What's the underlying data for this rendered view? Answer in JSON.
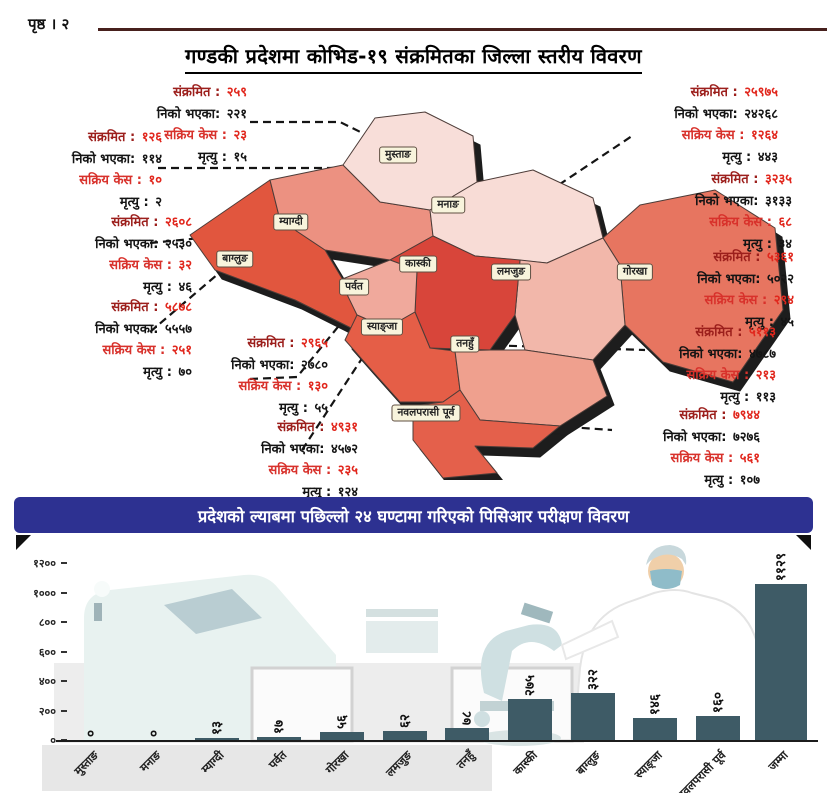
{
  "page": {
    "page_label": "पृष्ठ । २",
    "map_title": "गण्डकी प्रदेशमा कोभिड-१९ संक्रमितका जिल्ला स्तरीय विवरण"
  },
  "stat_labels": {
    "infected": "संक्रमित :",
    "recovered": "निको भएका:",
    "active": "सक्रिय केस :",
    "deaths": "मृत्यु :"
  },
  "colors": {
    "banner": "#2d3191",
    "bar": "#3e5b66",
    "map_shadow": "#1d1d1d",
    "infected_label": "#9c1f1c",
    "red_value": "#e1261c"
  },
  "districts": [
    {
      "name": "मुस्ताङ",
      "infected": "२५९",
      "recovered": "२२१",
      "active": "२३",
      "deaths": "१५",
      "color": "#f8ded9"
    },
    {
      "name": "मनाङ",
      "infected": "१२६",
      "recovered": "११४",
      "active": "१०",
      "deaths": "२",
      "color": "#f8dcd6"
    },
    {
      "name": "म्याग्दी",
      "infected": "२६०८",
      "recovered": "२५३०",
      "active": "३२",
      "deaths": "४६",
      "color": "#ec9181"
    },
    {
      "name": "बाग्लुङ",
      "infected": "५८७८",
      "recovered": "५५५७",
      "active": "२५१",
      "deaths": "७०",
      "color": "#e1563e"
    },
    {
      "name": "पर्वत",
      "infected": "२९६५",
      "recovered": "२७८०",
      "active": "१३०",
      "deaths": "५५",
      "color": "#f0a99c"
    },
    {
      "name": "स्याङ्जा",
      "infected": "४९३१",
      "recovered": "४५७२",
      "active": "२३५",
      "deaths": "१२४",
      "color": "#e55e47"
    },
    {
      "name": "कास्की",
      "infected": "२५९७५",
      "recovered": "२४२६८",
      "active": "१२६४",
      "deaths": "४४३",
      "color": "#d8453a"
    },
    {
      "name": "लमजुङ",
      "infected": "३२३५",
      "recovered": "३१३३",
      "active": "६८",
      "deaths": "३४",
      "color": "#f2b7aa"
    },
    {
      "name": "गोरखा",
      "infected": "५३६१",
      "recovered": "५०२२",
      "active": "२९४",
      "deaths": "४५",
      "color": "#e77560"
    },
    {
      "name": "तनहुँ",
      "infected": "५११३",
      "recovered": "४७८७",
      "active": "२१३",
      "deaths": "११३",
      "color": "#efa08e"
    },
    {
      "name": "नवलपरासी पूर्व",
      "infected": "७९४४",
      "recovered": "७२७६",
      "active": "५६१",
      "deaths": "१०७",
      "color": "#e4604b"
    }
  ],
  "chart_data": {
    "type": "bar",
    "title": "प्रदेशको ल्याबमा पछिल्लो २४ घण्टामा गरिएको पिसिआर परीक्षण विवरण",
    "categories": [
      "मुस्ताङ",
      "मनाङ",
      "म्याग्दी",
      "पर्वत",
      "गोरखा",
      "लमजुङ",
      "तनहुँ",
      "कास्की",
      "बाग्लुङ",
      "स्याङ्जा",
      "नवलपरासी पूर्व",
      "जम्मा"
    ],
    "values": [
      0,
      0,
      13,
      17,
      56,
      62,
      78,
      275,
      322,
      146,
      160,
      1129
    ],
    "values_display": [
      "०",
      "०",
      "१३",
      "१७",
      "५६",
      "६२",
      "७८",
      "२७५",
      "३२२",
      "१४६",
      "१६०",
      "११२९"
    ],
    "xlabel": "",
    "ylabel": "",
    "ylim": [
      0,
      1200
    ],
    "y_ticks": [
      0,
      200,
      400,
      600,
      800,
      1000,
      1200
    ],
    "y_ticks_display": [
      "०",
      "२००",
      "४००",
      "६००",
      "८००",
      "१०००",
      "१२००"
    ],
    "grid": false,
    "legend": "none"
  }
}
